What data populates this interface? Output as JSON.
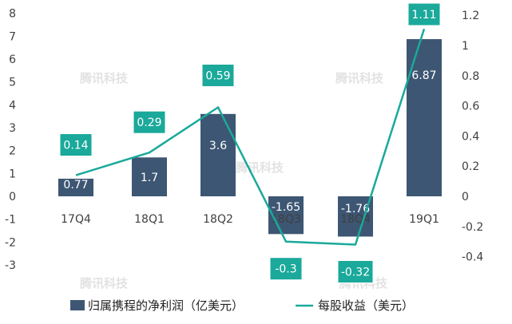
{
  "chart_data": {
    "type": "bar+line",
    "categories": [
      "17Q4",
      "18Q1",
      "18Q2",
      "18Q3",
      "18Q4",
      "19Q1"
    ],
    "series": [
      {
        "name": "归属携程的净利润（亿美元）",
        "type": "bar",
        "axis": "left",
        "color": "#3d5673",
        "values": [
          0.77,
          1.7,
          3.6,
          -1.65,
          -1.76,
          6.87
        ],
        "labels": [
          "0.77",
          "1.7",
          "3.6",
          "-1.65",
          "-1.76",
          "6.87"
        ]
      },
      {
        "name": "每股收益（美元）",
        "type": "line",
        "axis": "right",
        "color": "#1aa99a",
        "values": [
          0.14,
          0.29,
          0.59,
          -0.3,
          -0.32,
          1.11
        ],
        "labels": [
          "0.14",
          "0.29",
          "0.59",
          "-0.3",
          "-0.32",
          "1.11"
        ]
      }
    ],
    "left_axis": {
      "range": [
        -3.5,
        8.2
      ],
      "ticks": [
        8,
        7,
        6,
        5,
        4,
        3,
        2,
        1,
        0,
        -1,
        -2,
        -3
      ],
      "tick_labels": [
        "8",
        "7",
        "6",
        "5",
        "4",
        "3",
        "2",
        "1",
        "0",
        "-1",
        "-2",
        "-3"
      ]
    },
    "right_axis": {
      "range": [
        -0.4867,
        1.1
      ],
      "ticks": [
        1.2,
        1.0,
        0.8,
        0.6,
        0.4,
        0.2,
        0,
        -0.2,
        -0.4
      ],
      "tick_labels": [
        "1.2",
        "1",
        "0.8",
        "0.6",
        "0.4",
        "0.2",
        "0",
        "-0.2",
        "-0.4"
      ]
    },
    "grid": false,
    "legend_position": "bottom",
    "watermark": "腾讯科技"
  },
  "colors": {
    "bar": "#3d5673",
    "line": "#1aa99a",
    "label_box": "#1aa99a",
    "axis_text": "#404040"
  }
}
